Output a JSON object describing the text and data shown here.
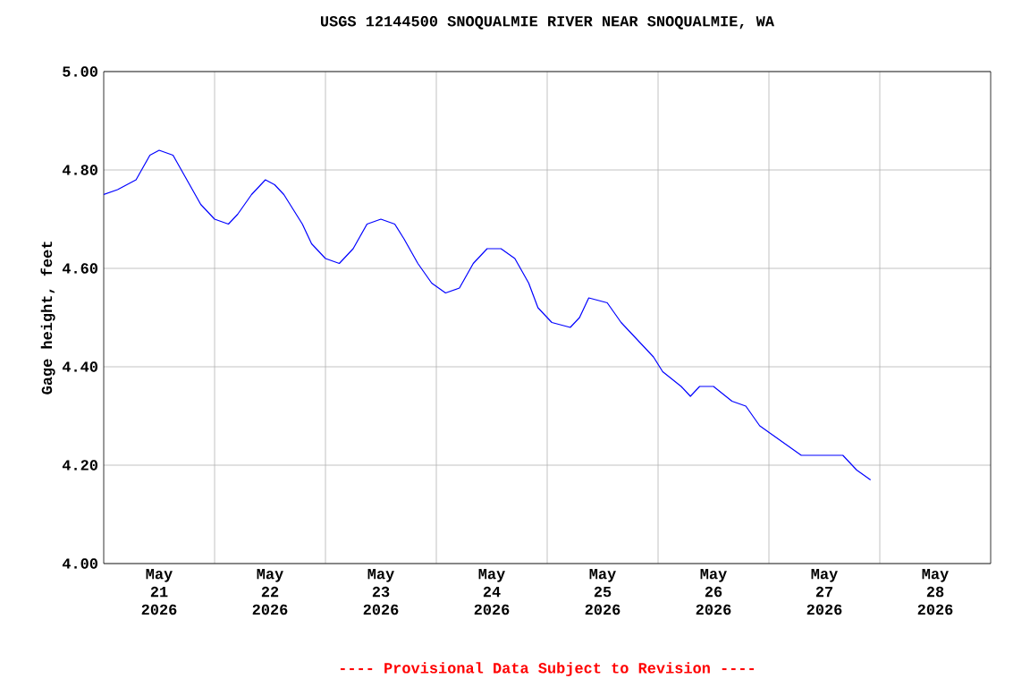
{
  "chart_data": {
    "type": "line",
    "title": "USGS 12144500 SNOQUALMIE RIVER NEAR SNOQUALMIE, WA",
    "ylabel": "Gage height, feet",
    "annotations": [
      "---- Provisional Data Subject to Revision ----"
    ],
    "xlim": [
      "2026-05-21T00:00",
      "2026-05-29T00:00"
    ],
    "xticks": [
      {
        "value": "2026-05-22T00:00",
        "label": null
      },
      {
        "value": "2026-05-23T00:00",
        "label": null
      },
      {
        "value": "2026-05-24T00:00",
        "label": null
      },
      {
        "value": "2026-05-25T00:00",
        "label": null
      },
      {
        "value": "2026-05-26T00:00",
        "label": null
      },
      {
        "value": "2026-05-27T00:00",
        "label": null
      },
      {
        "value": "2026-05-28T00:00",
        "label": null
      },
      {
        "value": "2026-05-21T12:00",
        "label": "May 21 2026"
      },
      {
        "value": "2026-05-22T12:00",
        "label": "May 22 2026"
      },
      {
        "value": "2026-05-23T12:00",
        "label": "May 23 2026"
      },
      {
        "value": "2026-05-24T12:00",
        "label": "May 24 2026"
      },
      {
        "value": "2026-05-25T12:00",
        "label": "May 25 2026"
      },
      {
        "value": "2026-05-26T12:00",
        "label": "May 26 2026"
      },
      {
        "value": "2026-05-27T12:00",
        "label": "May 27 2026"
      },
      {
        "value": "2026-05-28T12:00",
        "label": "May 28 2026"
      }
    ],
    "ylim": [
      4.0,
      5.0
    ],
    "yticks": [
      {
        "value": 4.0,
        "label": "4.00"
      },
      {
        "value": 4.2,
        "label": "4.20"
      },
      {
        "value": 4.4,
        "label": "4.40"
      },
      {
        "value": 4.6,
        "label": "4.60"
      },
      {
        "value": 4.8,
        "label": "4.80"
      },
      {
        "value": 5.0,
        "label": "5.00"
      }
    ],
    "grid": true,
    "marker": "none",
    "line_style": "solid",
    "series": [
      {
        "color": "#0000ff",
        "x": [
          "2026-05-21T00:00",
          "2026-05-21T03:00",
          "2026-05-21T07:00",
          "2026-05-21T10:00",
          "2026-05-21T12:00",
          "2026-05-21T15:00",
          "2026-05-21T18:00",
          "2026-05-21T21:00",
          "2026-05-22T00:00",
          "2026-05-22T03:00",
          "2026-05-22T05:00",
          "2026-05-22T08:00",
          "2026-05-22T11:00",
          "2026-05-22T13:00",
          "2026-05-22T15:00",
          "2026-05-22T19:00",
          "2026-05-22T21:00",
          "2026-05-23T00:00",
          "2026-05-23T03:00",
          "2026-05-23T06:00",
          "2026-05-23T09:00",
          "2026-05-23T12:00",
          "2026-05-23T15:00",
          "2026-05-23T17:00",
          "2026-05-23T20:00",
          "2026-05-23T23:00",
          "2026-05-24T02:00",
          "2026-05-24T05:00",
          "2026-05-24T08:00",
          "2026-05-24T11:00",
          "2026-05-24T14:00",
          "2026-05-24T17:00",
          "2026-05-24T20:00",
          "2026-05-24T22:00",
          "2026-05-25T01:00",
          "2026-05-25T05:00",
          "2026-05-25T07:00",
          "2026-05-25T09:00",
          "2026-05-25T13:00",
          "2026-05-25T16:00",
          "2026-05-25T20:00",
          "2026-05-25T23:00",
          "2026-05-26T01:00",
          "2026-05-26T05:00",
          "2026-05-26T07:00",
          "2026-05-26T09:00",
          "2026-05-26T12:00",
          "2026-05-26T16:00",
          "2026-05-26T19:00",
          "2026-05-26T22:00",
          "2026-05-27T01:00",
          "2026-05-27T04:00",
          "2026-05-27T07:00",
          "2026-05-27T10:00",
          "2026-05-27T13:00",
          "2026-05-27T16:00",
          "2026-05-27T19:00",
          "2026-05-27T22:00"
        ],
        "values": [
          4.75,
          4.76,
          4.78,
          4.83,
          4.84,
          4.83,
          4.78,
          4.73,
          4.7,
          4.69,
          4.71,
          4.75,
          4.78,
          4.77,
          4.75,
          4.69,
          4.65,
          4.62,
          4.61,
          4.64,
          4.69,
          4.7,
          4.69,
          4.66,
          4.61,
          4.57,
          4.55,
          4.56,
          4.61,
          4.64,
          4.64,
          4.62,
          4.57,
          4.52,
          4.49,
          4.48,
          4.5,
          4.54,
          4.53,
          4.49,
          4.45,
          4.42,
          4.39,
          4.36,
          4.34,
          4.36,
          4.36,
          4.33,
          4.32,
          4.28,
          4.26,
          4.24,
          4.22,
          4.22,
          4.22,
          4.22,
          4.19,
          4.17
        ]
      }
    ]
  }
}
